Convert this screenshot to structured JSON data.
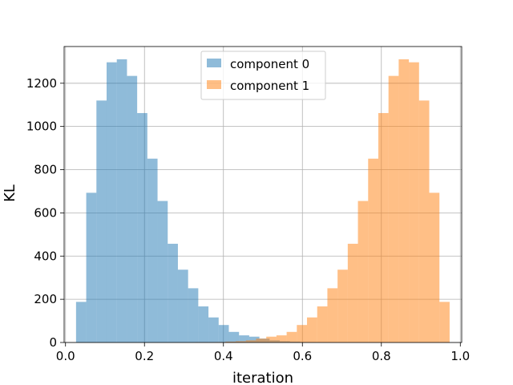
{
  "chart_data": {
    "type": "bar",
    "title": "",
    "xlabel": "iteration",
    "ylabel": "KL",
    "xlim": [
      -0.0035,
      1.0035
    ],
    "ylim": [
      0,
      1370
    ],
    "xticks": [
      0.0,
      0.2,
      0.4,
      0.6,
      0.8,
      1.0
    ],
    "xtick_labels": [
      "0.0",
      "0.2",
      "0.4",
      "0.6",
      "0.8",
      "1.0"
    ],
    "yticks": [
      0,
      200,
      400,
      600,
      800,
      1000,
      1200
    ],
    "ytick_labels": [
      "0",
      "200",
      "400",
      "600",
      "800",
      "1000",
      "1200"
    ],
    "grid": true,
    "legend_position": "top-center",
    "series": [
      {
        "name": "component 0",
        "color": "#1f77b4",
        "opacity": 0.5,
        "bin_edges": [
          0.0267,
          0.0525,
          0.0783,
          0.1041,
          0.1299,
          0.1557,
          0.1815,
          0.2073,
          0.2331,
          0.2589,
          0.2847,
          0.3105,
          0.3363,
          0.3621,
          0.3879,
          0.4137,
          0.4395,
          0.4653,
          0.4911,
          0.5169,
          0.5427,
          0.5685,
          0.5943,
          0.6201,
          0.6459,
          0.6717
        ],
        "counts": [
          188,
          693,
          1120,
          1297,
          1311,
          1234,
          1062,
          851,
          655,
          457,
          337,
          251,
          167,
          116,
          81,
          49,
          33,
          27,
          18,
          10,
          6,
          4,
          2,
          1,
          1
        ]
      },
      {
        "name": "component 1",
        "color": "#ff7f0e",
        "opacity": 0.5,
        "bin_edges": [
          0.3279,
          0.3537,
          0.3795,
          0.4053,
          0.4311,
          0.4569,
          0.4827,
          0.5085,
          0.5343,
          0.5601,
          0.5859,
          0.6117,
          0.6375,
          0.6633,
          0.6891,
          0.7149,
          0.7407,
          0.7665,
          0.7923,
          0.8181,
          0.8439,
          0.8697,
          0.8955,
          0.9213,
          0.9471,
          0.9729
        ],
        "counts": [
          1,
          1,
          2,
          4,
          6,
          10,
          18,
          27,
          33,
          49,
          81,
          116,
          167,
          251,
          337,
          457,
          655,
          851,
          1062,
          1234,
          1311,
          1297,
          1120,
          693,
          188
        ]
      }
    ]
  }
}
